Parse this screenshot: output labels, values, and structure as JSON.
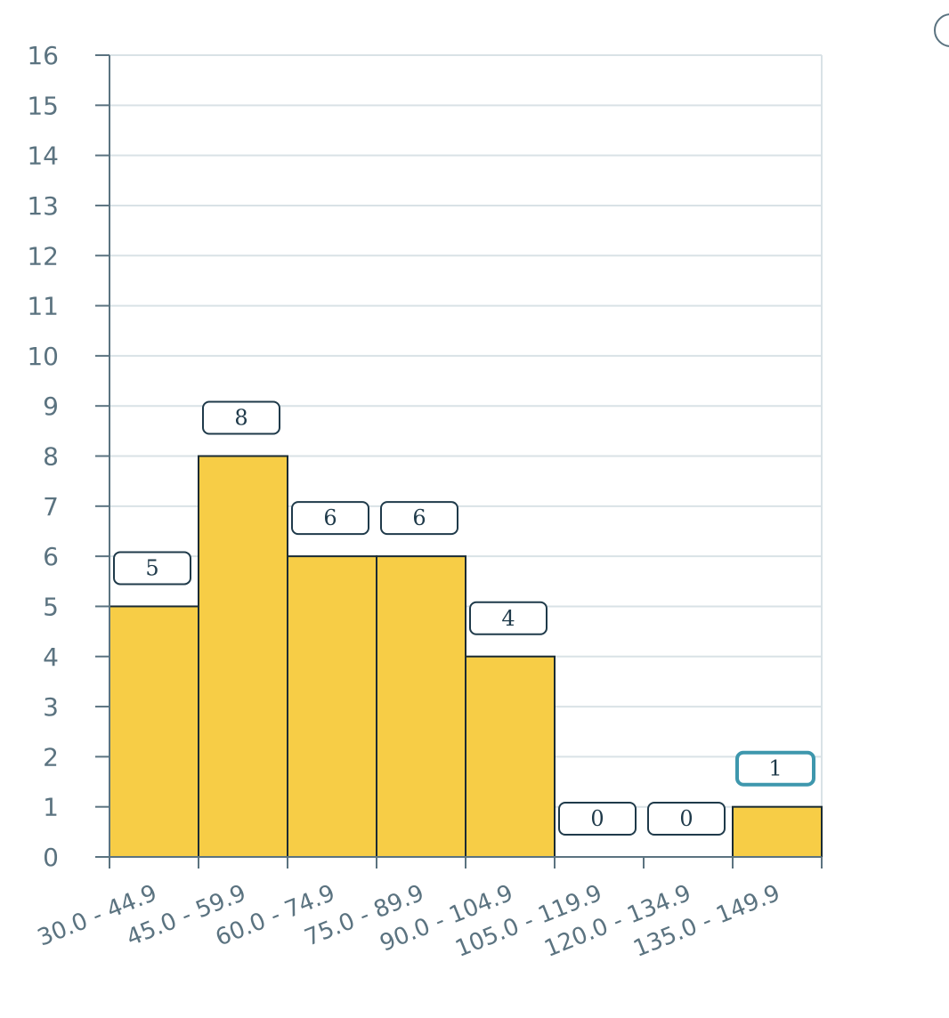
{
  "chart_data": {
    "type": "bar",
    "title": "",
    "xlabel": "",
    "ylabel": "",
    "categories": [
      "30.0 - 44.9",
      "45.0 - 59.9",
      "60.0 - 74.9",
      "75.0 - 89.9",
      "90.0 - 104.9",
      "105.0 - 119.9",
      "120.0 - 134.9",
      "135.0 - 149.9"
    ],
    "values": [
      5,
      8,
      6,
      6,
      4,
      0,
      0,
      1
    ],
    "ylim": [
      0,
      16
    ],
    "yticks": [
      0,
      1,
      2,
      3,
      4,
      5,
      6,
      7,
      8,
      9,
      10,
      11,
      12,
      13,
      14,
      15,
      16
    ],
    "grid": true,
    "legend": "none",
    "data_labels": true,
    "highlighted_label_index": 7,
    "colors": {
      "bar_fill": "#f7cd46",
      "bar_stroke": "#1a2b33",
      "axis": "#5b7380",
      "grid": "#d9e2e6",
      "tick_text": "#5b7380",
      "label_border": "#1f3a4a",
      "label_highlight_border": "#3e97ad",
      "label_text": "#1f3a4a"
    }
  }
}
